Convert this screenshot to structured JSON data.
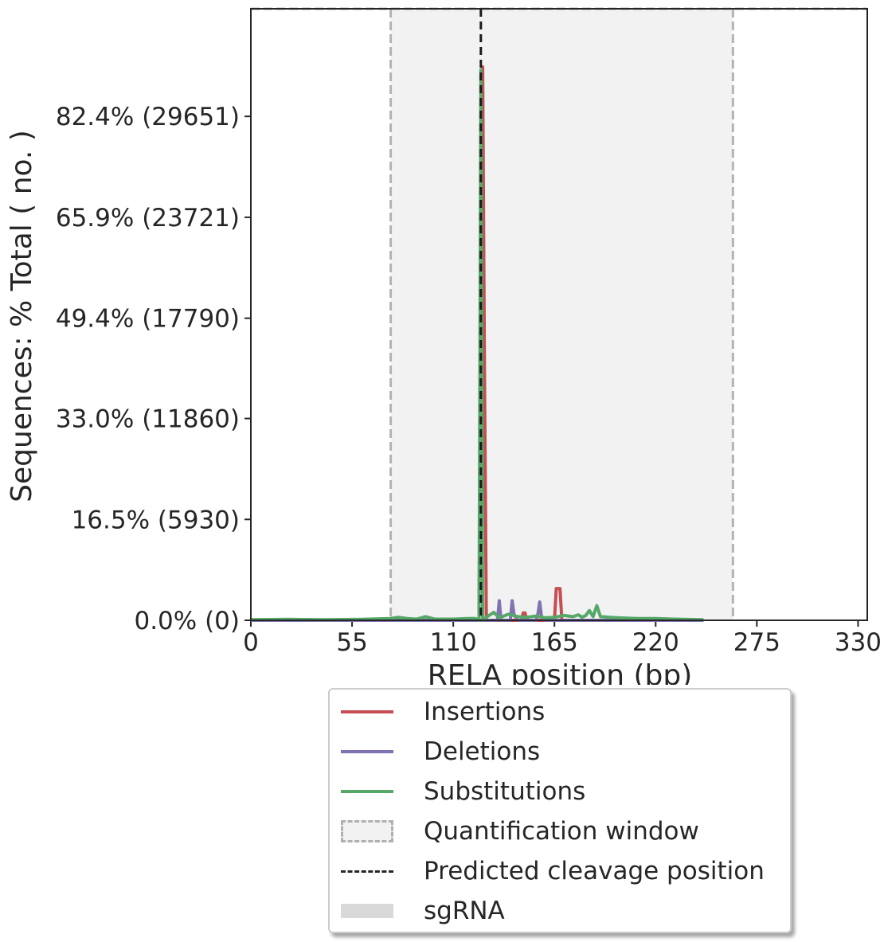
{
  "chart_data": {
    "type": "line",
    "xlabel": "RELA position (bp)",
    "ylabel": "Sequences: % Total ( no. )",
    "xlim": [
      0,
      335
    ],
    "ylim": [
      0,
      100
    ],
    "x_ticks": [
      0,
      55,
      110,
      165,
      220,
      275,
      330
    ],
    "x_tick_labels": [
      "0",
      "55",
      "110",
      "165",
      "220",
      "275",
      "330"
    ],
    "y_ticks": [
      0,
      16.5,
      33.0,
      49.4,
      65.9,
      82.4
    ],
    "y_tick_labels": [
      "0.0% (0)",
      "16.5% (5930)",
      "33.0% (11860)",
      "49.4% (17790)",
      "65.9% (23721)",
      "82.4% (29651)"
    ],
    "quantification_window": [
      76,
      262
    ],
    "predicted_cleavage_position": 125,
    "series": [
      {
        "name": "Insertions",
        "color": "#c44e52",
        "x": [
          0,
          124,
          125,
          126,
          127,
          128,
          140,
          147,
          148,
          149,
          150,
          165,
          166,
          167,
          168,
          169,
          170,
          246
        ],
        "y": [
          0,
          0,
          50,
          90.5,
          40,
          0,
          0,
          0,
          1.2,
          1.2,
          0,
          0,
          5.2,
          5.2,
          5.2,
          0,
          0,
          0
        ]
      },
      {
        "name": "Deletions",
        "color": "#8172b2",
        "x": [
          0,
          129,
          134,
          135,
          136,
          141,
          142,
          143,
          145,
          155,
          156,
          157,
          158,
          160,
          246
        ],
        "y": [
          0,
          0,
          0,
          3.2,
          0,
          0,
          3.2,
          1,
          0,
          0,
          1,
          3.0,
          0.5,
          0,
          0
        ]
      },
      {
        "name": "Substitutions",
        "color": "#55a868",
        "x": [
          0,
          20,
          40,
          60,
          76,
          80,
          85,
          90,
          95,
          100,
          110,
          118,
          122,
          124,
          125,
          126,
          128,
          132,
          135,
          140,
          145,
          150,
          155,
          160,
          165,
          170,
          175,
          178,
          180,
          182,
          184,
          186,
          188,
          190,
          195,
          200,
          210,
          220,
          230,
          246
        ],
        "y": [
          0.1,
          0.15,
          0.1,
          0.15,
          0.3,
          0.5,
          0.3,
          0.2,
          0.6,
          0.2,
          0.2,
          0.3,
          0.3,
          0,
          90,
          0,
          0.5,
          1.3,
          0.4,
          1,
          0.6,
          0.5,
          0.7,
          0.4,
          0.5,
          0.8,
          0.6,
          0.9,
          0.5,
          0.8,
          1.6,
          0.6,
          2.4,
          0.6,
          0.5,
          0.4,
          0.3,
          0.3,
          0.2,
          0.1
        ]
      }
    ],
    "legend": {
      "position": "below",
      "items": [
        {
          "label": "Insertions",
          "kind": "line",
          "color": "#c44e52"
        },
        {
          "label": "Deletions",
          "kind": "line",
          "color": "#8172b2"
        },
        {
          "label": "Substitutions",
          "kind": "line",
          "color": "#55a868"
        },
        {
          "label": "Quantification window",
          "kind": "patch",
          "color": "#f2f2f2"
        },
        {
          "label": "Predicted cleavage position",
          "kind": "dashed",
          "color": "#262626"
        },
        {
          "label": "sgRNA",
          "kind": "band",
          "color": "#d9d9d9"
        }
      ]
    }
  }
}
